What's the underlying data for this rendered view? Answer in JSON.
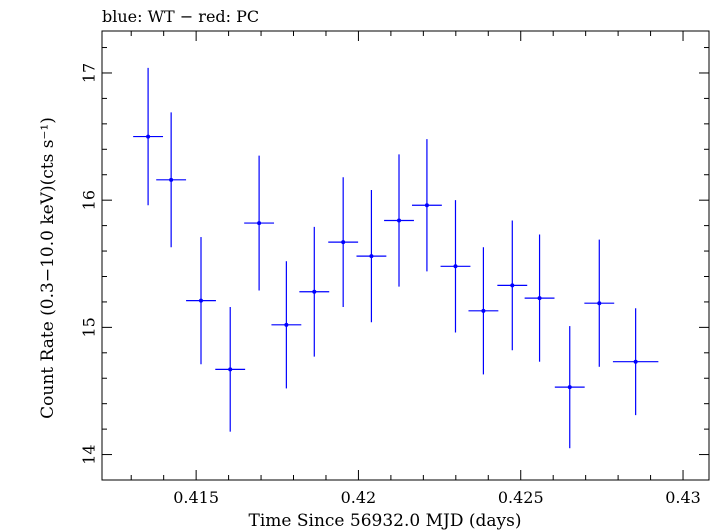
{
  "chart_data": {
    "type": "scatter",
    "title": "blue: WT − red: PC",
    "xlabel": "Time Since 56932.0 MJD (days)",
    "ylabel": "Count Rate (0.3−10.0 keV)(cts s⁻¹)",
    "xlim": [
      0.4121,
      0.4308
    ],
    "ylim": [
      13.8,
      17.33
    ],
    "x_ticks": [
      0.415,
      0.42,
      0.425,
      0.43
    ],
    "x_tick_labels": [
      "0.415",
      "0.42",
      "0.425",
      "0.43"
    ],
    "y_ticks": [
      14,
      15,
      16,
      17
    ],
    "y_tick_labels": [
      "14",
      "15",
      "16",
      "17"
    ],
    "grid": false,
    "series": [
      {
        "color": "#0000ff",
        "points": [
          {
            "x": 0.41352,
            "y": 16.5,
            "xerr": 0.00046,
            "yerr": 0.54
          },
          {
            "x": 0.41423,
            "y": 16.16,
            "xerr": 0.00046,
            "yerr": 0.53
          },
          {
            "x": 0.41515,
            "y": 15.21,
            "xerr": 0.00046,
            "yerr": 0.5
          },
          {
            "x": 0.41605,
            "y": 14.67,
            "xerr": 0.00046,
            "yerr": 0.49
          },
          {
            "x": 0.41694,
            "y": 15.82,
            "xerr": 0.00046,
            "yerr": 0.53
          },
          {
            "x": 0.41778,
            "y": 15.02,
            "xerr": 0.00046,
            "yerr": 0.5
          },
          {
            "x": 0.41864,
            "y": 15.28,
            "xerr": 0.00046,
            "yerr": 0.51
          },
          {
            "x": 0.41953,
            "y": 15.67,
            "xerr": 0.00046,
            "yerr": 0.51
          },
          {
            "x": 0.4204,
            "y": 15.56,
            "xerr": 0.00046,
            "yerr": 0.52
          },
          {
            "x": 0.42125,
            "y": 15.84,
            "xerr": 0.00046,
            "yerr": 0.52
          },
          {
            "x": 0.42211,
            "y": 15.96,
            "xerr": 0.00046,
            "yerr": 0.52
          },
          {
            "x": 0.42299,
            "y": 15.48,
            "xerr": 0.00046,
            "yerr": 0.52
          },
          {
            "x": 0.42385,
            "y": 15.13,
            "xerr": 0.00046,
            "yerr": 0.5
          },
          {
            "x": 0.42474,
            "y": 15.33,
            "xerr": 0.00046,
            "yerr": 0.51
          },
          {
            "x": 0.42558,
            "y": 15.23,
            "xerr": 0.00046,
            "yerr": 0.5
          },
          {
            "x": 0.42651,
            "y": 14.53,
            "xerr": 0.00046,
            "yerr": 0.48
          },
          {
            "x": 0.42742,
            "y": 15.19,
            "xerr": 0.00046,
            "yerr": 0.5
          },
          {
            "x": 0.42854,
            "y": 14.73,
            "xerr": 0.0007,
            "yerr": 0.42
          }
        ]
      }
    ]
  }
}
